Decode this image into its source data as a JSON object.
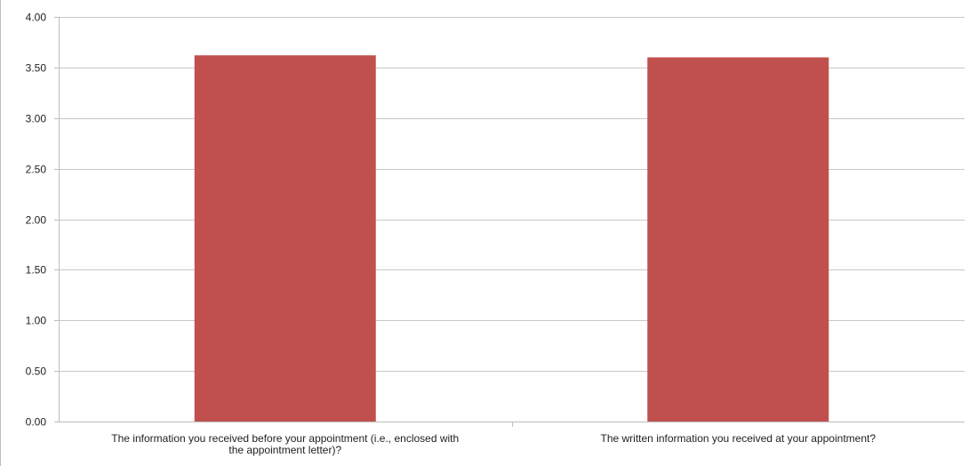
{
  "chart_data": {
    "type": "bar",
    "title": "",
    "xlabel": "",
    "ylabel": "",
    "categories": [
      [
        "The information you received before your appointment (i.e., enclosed with",
        "the appointment letter)?"
      ],
      [
        "The written information you received at your appointment?"
      ]
    ],
    "series": [
      {
        "values": [
          3.62,
          3.6
        ],
        "color": "#c0504d"
      }
    ],
    "ylim": [
      0,
      4
    ],
    "yticks": [
      "0.00",
      "0.50",
      "1.00",
      "1.50",
      "2.00",
      "2.50",
      "3.00",
      "3.50",
      "4.00"
    ],
    "grid": true,
    "legend": "none"
  }
}
